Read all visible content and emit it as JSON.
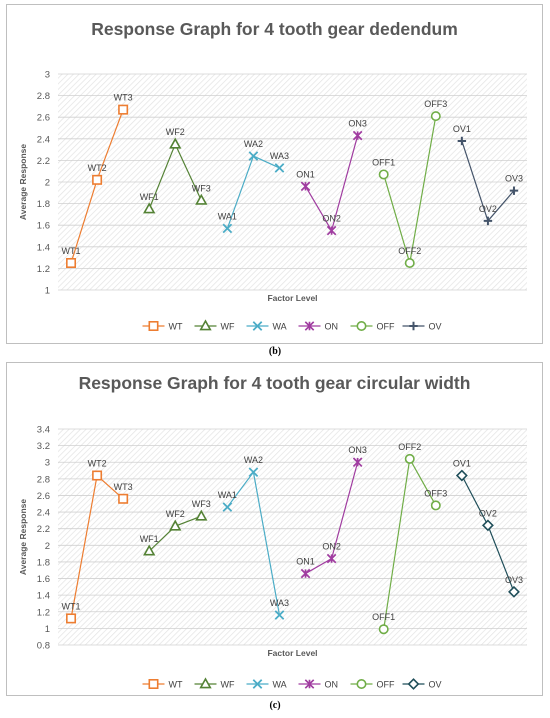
{
  "captions": [
    "(b)",
    "(c)"
  ],
  "chart_data": [
    {
      "type": "line",
      "title": "Response Graph for 4 tooth gear dedendum",
      "xlabel": "Factor Level",
      "ylabel": "Average Response",
      "ylim": [
        1,
        3
      ],
      "yticks": [
        "1",
        "1.2",
        "1.4",
        "1.6",
        "1.8",
        "2",
        "2.2",
        "2.4",
        "2.6",
        "2.8",
        "3"
      ],
      "grid": true,
      "legend_position": "bottom",
      "series": [
        {
          "name": "WT",
          "color": "#ED7D31",
          "marker": "square",
          "points": [
            {
              "label": "WT1",
              "y": 1.25
            },
            {
              "label": "WT2",
              "y": 2.02
            },
            {
              "label": "WT3",
              "y": 2.67
            }
          ]
        },
        {
          "name": "WF",
          "color": "#548235",
          "marker": "triangle",
          "points": [
            {
              "label": "WF1",
              "y": 1.75
            },
            {
              "label": "WF2",
              "y": 2.35
            },
            {
              "label": "WF3",
              "y": 1.83
            }
          ]
        },
        {
          "name": "WA",
          "color": "#4BACC6",
          "marker": "x",
          "points": [
            {
              "label": "WA1",
              "y": 1.57
            },
            {
              "label": "WA2",
              "y": 2.24
            },
            {
              "label": "WA3",
              "y": 2.13
            }
          ]
        },
        {
          "name": "ON",
          "color": "#A03CA0",
          "marker": "star",
          "points": [
            {
              "label": "ON1",
              "y": 1.96
            },
            {
              "label": "ON2",
              "y": 1.55
            },
            {
              "label": "ON3",
              "y": 2.43
            }
          ]
        },
        {
          "name": "OFF",
          "color": "#70AD47",
          "marker": "circle",
          "points": [
            {
              "label": "OFF1",
              "y": 2.07
            },
            {
              "label": "OFF2",
              "y": 1.25
            },
            {
              "label": "OFF3",
              "y": 2.61
            }
          ]
        },
        {
          "name": "OV",
          "color": "#44546A",
          "marker": "plus",
          "points": [
            {
              "label": "OV1",
              "y": 2.38
            },
            {
              "label": "OV2",
              "y": 1.64
            },
            {
              "label": "OV3",
              "y": 1.92
            }
          ]
        }
      ]
    },
    {
      "type": "line",
      "title": "Response Graph for 4 tooth gear circular width",
      "xlabel": "Factor Level",
      "ylabel": "Average Response",
      "ylim": [
        0.8,
        3.4
      ],
      "yticks": [
        "0.8",
        "1",
        "1.2",
        "1.4",
        "1.6",
        "1.8",
        "2",
        "2.2",
        "2.4",
        "2.6",
        "2.8",
        "3",
        "3.2",
        "3.4"
      ],
      "grid": true,
      "legend_position": "bottom",
      "series": [
        {
          "name": "WT",
          "color": "#ED7D31",
          "marker": "square",
          "points": [
            {
              "label": "WT1",
              "y": 1.12
            },
            {
              "label": "WT2",
              "y": 2.84
            },
            {
              "label": "WT3",
              "y": 2.56
            }
          ]
        },
        {
          "name": "WF",
          "color": "#548235",
          "marker": "triangle",
          "points": [
            {
              "label": "WF1",
              "y": 1.93
            },
            {
              "label": "WF2",
              "y": 2.23
            },
            {
              "label": "WF3",
              "y": 2.35
            }
          ]
        },
        {
          "name": "WA",
          "color": "#4BACC6",
          "marker": "x",
          "points": [
            {
              "label": "WA1",
              "y": 2.46
            },
            {
              "label": "WA2",
              "y": 2.88
            },
            {
              "label": "WA3",
              "y": 1.16
            }
          ]
        },
        {
          "name": "ON",
          "color": "#A03CA0",
          "marker": "star",
          "points": [
            {
              "label": "ON1",
              "y": 1.66
            },
            {
              "label": "ON2",
              "y": 1.84
            },
            {
              "label": "ON3",
              "y": 3.0
            }
          ]
        },
        {
          "name": "OFF",
          "color": "#70AD47",
          "marker": "circle",
          "points": [
            {
              "label": "OFF1",
              "y": 0.99
            },
            {
              "label": "OFF2",
              "y": 3.04
            },
            {
              "label": "OFF3",
              "y": 2.48
            }
          ]
        },
        {
          "name": "OV",
          "color": "#1F4E59",
          "marker": "diamond",
          "points": [
            {
              "label": "OV1",
              "y": 2.84
            },
            {
              "label": "OV2",
              "y": 2.24
            },
            {
              "label": "OV3",
              "y": 1.44
            }
          ]
        }
      ]
    }
  ]
}
